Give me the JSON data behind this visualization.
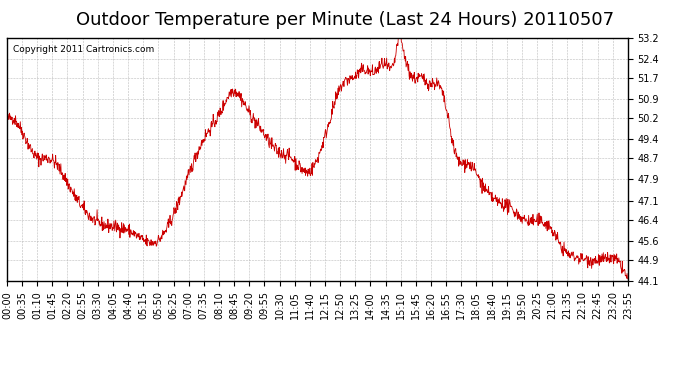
{
  "title": "Outdoor Temperature per Minute (Last 24 Hours) 20110507",
  "copyright_text": "Copyright 2011 Cartronics.com",
  "line_color": "#cc0000",
  "bg_color": "#ffffff",
  "plot_bg_color": "#ffffff",
  "grid_color": "#aaaaaa",
  "y_ticks": [
    44.1,
    44.9,
    45.6,
    46.4,
    47.1,
    47.9,
    48.7,
    49.4,
    50.2,
    50.9,
    51.7,
    52.4,
    53.2
  ],
  "ylim": [
    44.1,
    53.2
  ],
  "x_tick_labels": [
    "00:00",
    "00:35",
    "01:10",
    "01:45",
    "02:20",
    "02:55",
    "03:30",
    "04:05",
    "04:40",
    "05:15",
    "05:50",
    "06:25",
    "07:00",
    "07:35",
    "08:10",
    "08:45",
    "09:20",
    "09:55",
    "10:30",
    "11:05",
    "11:40",
    "12:15",
    "12:50",
    "13:25",
    "14:00",
    "14:35",
    "15:10",
    "15:45",
    "16:20",
    "16:55",
    "17:30",
    "18:05",
    "18:40",
    "19:15",
    "19:50",
    "20:25",
    "21:00",
    "21:35",
    "22:10",
    "22:45",
    "23:20",
    "23:55"
  ],
  "title_fontsize": 13,
  "tick_fontsize": 7.0,
  "copyright_fontsize": 6.5,
  "key_hours": [
    0.0,
    0.15,
    1.2,
    1.6,
    2.5,
    3.5,
    4.7,
    5.8,
    6.4,
    7.0,
    7.6,
    8.3,
    8.7,
    9.3,
    9.8,
    10.4,
    11.0,
    11.7,
    12.5,
    13.0,
    13.4,
    13.8,
    14.2,
    14.6,
    15.0,
    15.15,
    15.3,
    15.7,
    16.0,
    16.3,
    16.8,
    17.4,
    17.8,
    18.5,
    19.5,
    20.0,
    21.0,
    21.5,
    22.0,
    22.5,
    23.0,
    23.5,
    24.0
  ],
  "key_temps": [
    50.1,
    50.2,
    48.7,
    48.7,
    47.5,
    46.3,
    46.0,
    45.6,
    46.5,
    48.0,
    49.4,
    50.5,
    51.2,
    50.5,
    49.8,
    49.0,
    48.7,
    48.2,
    50.2,
    51.5,
    51.7,
    52.0,
    51.9,
    52.2,
    52.4,
    53.2,
    52.8,
    51.7,
    51.7,
    51.5,
    51.2,
    48.7,
    48.5,
    47.5,
    46.8,
    46.4,
    46.1,
    45.3,
    45.0,
    44.9,
    44.9,
    44.9,
    44.1
  ]
}
